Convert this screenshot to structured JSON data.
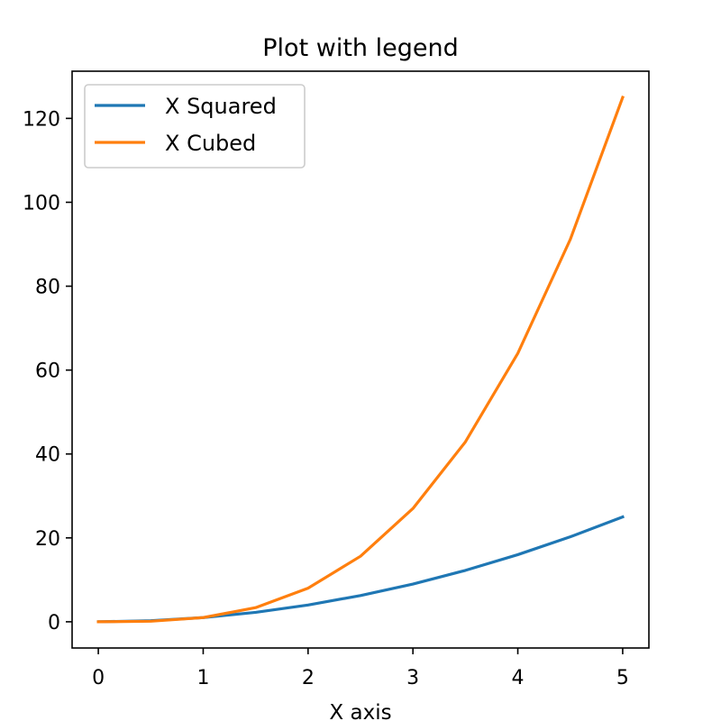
{
  "chart_data": {
    "type": "line",
    "title": "Plot with legend",
    "xlabel": "X axis",
    "ylabel": "",
    "x": [
      0,
      0.5,
      1,
      1.5,
      2,
      2.5,
      3,
      3.5,
      4,
      4.5,
      5
    ],
    "series": [
      {
        "name": "X Squared",
        "color": "#1f77b4",
        "values": [
          0,
          0.25,
          1,
          2.25,
          4,
          6.25,
          9,
          12.25,
          16,
          20.25,
          25
        ]
      },
      {
        "name": "X Cubed",
        "color": "#ff7f0e",
        "values": [
          0,
          0.125,
          1,
          3.375,
          8,
          15.625,
          27,
          42.875,
          64,
          91.125,
          125
        ]
      }
    ],
    "xlim": [
      -0.25,
      5.25
    ],
    "ylim": [
      -6.25,
      131.25
    ],
    "xticks": [
      0,
      1,
      2,
      3,
      4,
      5
    ],
    "yticks": [
      0,
      20,
      40,
      60,
      80,
      100,
      120
    ],
    "grid": false,
    "legend_position": "top-left"
  }
}
